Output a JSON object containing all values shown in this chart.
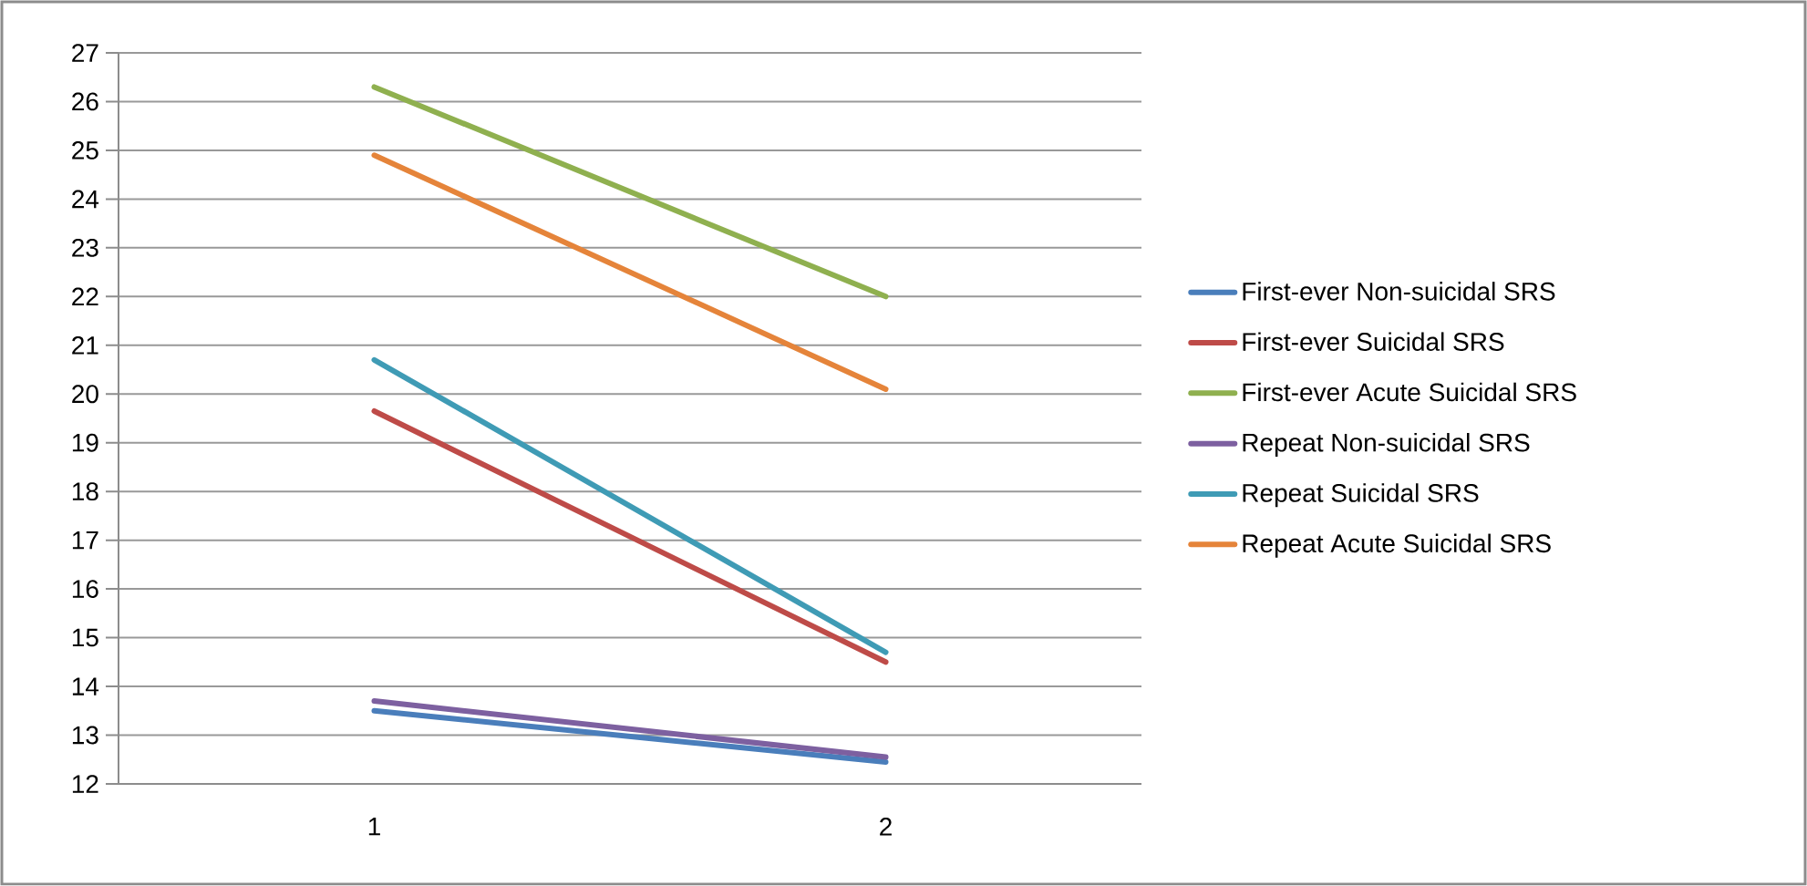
{
  "chart_data": {
    "type": "line",
    "categories": [
      "1",
      "2"
    ],
    "ylim": [
      12,
      27
    ],
    "yticks": [
      12,
      13,
      14,
      15,
      16,
      17,
      18,
      19,
      20,
      21,
      22,
      23,
      24,
      25,
      26,
      27
    ],
    "grid": "y",
    "legend": "right",
    "series": [
      {
        "name": "First-ever Non-suicidal SRS",
        "color": "#4a7ebb",
        "values": [
          13.5,
          12.45
        ]
      },
      {
        "name": "First-ever Suicidal SRS",
        "color": "#be4b48",
        "values": [
          19.65,
          14.5
        ]
      },
      {
        "name": "First-ever Acute Suicidal SRS",
        "color": "#8fb04f",
        "values": [
          26.3,
          22.0
        ]
      },
      {
        "name": "Repeat Non-suicidal SRS",
        "color": "#7d60a0",
        "values": [
          13.7,
          12.55
        ]
      },
      {
        "name": "Repeat Suicidal SRS",
        "color": "#3f9bb5",
        "values": [
          20.7,
          14.7
        ]
      },
      {
        "name": "Repeat Acute Suicidal SRS",
        "color": "#e5843a",
        "values": [
          24.9,
          20.1
        ]
      }
    ]
  }
}
